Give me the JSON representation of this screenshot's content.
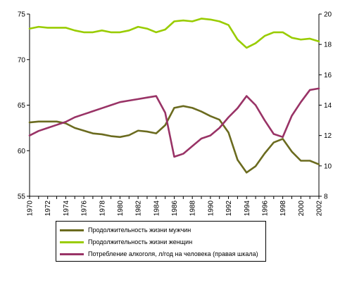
{
  "chart_data": {
    "type": "line",
    "x": [
      1970,
      1971,
      1972,
      1973,
      1974,
      1975,
      1976,
      1977,
      1978,
      1979,
      1980,
      1981,
      1982,
      1983,
      1984,
      1985,
      1986,
      1987,
      1988,
      1989,
      1990,
      1991,
      1992,
      1993,
      1994,
      1995,
      1996,
      1997,
      1998,
      1999,
      2000,
      2001,
      2002
    ],
    "x_ticks": [
      "1970",
      "1972",
      "1974",
      "1976",
      "1978",
      "1980",
      "1982",
      "1984",
      "1986",
      "1988",
      "1990",
      "1992",
      "1994",
      "1996",
      "1998",
      "2000",
      "2002"
    ],
    "series": [
      {
        "name": "Продолжительность жизни мужчин",
        "axis": "left",
        "color": "#6b6b1f",
        "values": [
          63.1,
          63.2,
          63.2,
          63.2,
          63.0,
          62.5,
          62.2,
          61.9,
          61.8,
          61.6,
          61.5,
          61.7,
          62.2,
          62.1,
          61.9,
          62.8,
          64.7,
          64.9,
          64.7,
          64.3,
          63.8,
          63.4,
          62.0,
          59.0,
          57.6,
          58.3,
          59.7,
          60.9,
          61.3,
          59.9,
          58.9,
          58.9,
          58.5
        ]
      },
      {
        "name": "Продолжительность жизни женщин",
        "axis": "left",
        "color": "#99cc00",
        "values": [
          73.4,
          73.6,
          73.5,
          73.5,
          73.5,
          73.2,
          73.0,
          73.0,
          73.2,
          73.0,
          73.0,
          73.2,
          73.6,
          73.4,
          73.0,
          73.3,
          74.2,
          74.3,
          74.2,
          74.5,
          74.4,
          74.2,
          73.8,
          72.2,
          71.3,
          71.8,
          72.6,
          73.0,
          73.0,
          72.4,
          72.2,
          72.3,
          72.0
        ]
      },
      {
        "name": "Потребление алкоголя, л/год на человека (правая шкала)",
        "axis": "right",
        "color": "#993366",
        "values": [
          12.0,
          12.3,
          12.5,
          12.7,
          12.9,
          13.2,
          13.4,
          13.6,
          13.8,
          14.0,
          14.2,
          14.3,
          14.4,
          14.5,
          14.6,
          13.5,
          10.6,
          10.8,
          11.3,
          11.8,
          12.0,
          12.5,
          13.2,
          13.8,
          14.6,
          14.0,
          13.0,
          12.1,
          11.9,
          13.3,
          14.2,
          15.0,
          15.1
        ]
      }
    ],
    "ylim_left": [
      55,
      75
    ],
    "yticks_left": [
      55,
      60,
      65,
      70,
      75
    ],
    "ylim_right": [
      8,
      20
    ],
    "yticks_right": [
      8,
      10,
      12,
      14,
      16,
      18,
      20
    ],
    "xlim": [
      1970,
      2002
    ],
    "grid": false,
    "legend_position": "bottom"
  }
}
